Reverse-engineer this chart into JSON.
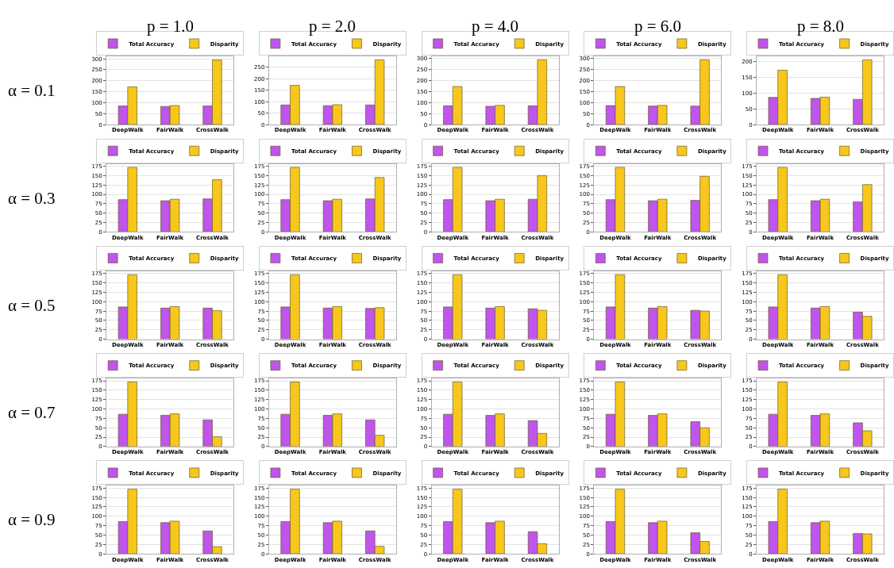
{
  "chart_data": [
    {
      "type": "bar",
      "title": "p = 1.0",
      "ylabel": "α = 0.1",
      "categories": [
        "DeepWalk",
        "FairWalk",
        "CrossWalk"
      ],
      "series": [
        {
          "name": "Total Accuracy",
          "color": "#bf55ec",
          "values": [
            85,
            83,
            85
          ]
        },
        {
          "name": "Disparity",
          "color": "#f7c71b",
          "values": [
            172,
            87,
            295
          ]
        }
      ],
      "ylim": [
        0,
        310
      ],
      "yticks": [
        0,
        50,
        100,
        150,
        200,
        250,
        300
      ],
      "grid": "y",
      "legend": "top"
    },
    {
      "type": "bar",
      "title": "p = 2.0",
      "categories": [
        "DeepWalk",
        "FairWalk",
        "CrossWalk"
      ],
      "series": [
        {
          "name": "Total Accuracy",
          "color": "#bf55ec",
          "values": [
            86,
            83,
            86
          ]
        },
        {
          "name": "Disparity",
          "color": "#f7c71b",
          "values": [
            172,
            87,
            283
          ]
        }
      ],
      "ylim": [
        0,
        297
      ],
      "yticks": [
        0,
        50,
        100,
        150,
        200,
        250
      ],
      "grid": "y",
      "legend": "top"
    },
    {
      "type": "bar",
      "title": "p = 4.0",
      "categories": [
        "DeepWalk",
        "FairWalk",
        "CrossWalk"
      ],
      "series": [
        {
          "name": "Total Accuracy",
          "color": "#bf55ec",
          "values": [
            85,
            83,
            85
          ]
        },
        {
          "name": "Disparity",
          "color": "#f7c71b",
          "values": [
            172,
            87,
            293
          ]
        }
      ],
      "ylim": [
        0,
        307
      ],
      "yticks": [
        0,
        50,
        100,
        150,
        200,
        250,
        300
      ],
      "grid": "y",
      "legend": "top"
    },
    {
      "type": "bar",
      "title": "p = 6.0",
      "categories": [
        "DeepWalk",
        "FairWalk",
        "CrossWalk"
      ],
      "series": [
        {
          "name": "Total Accuracy",
          "color": "#bf55ec",
          "values": [
            86,
            84,
            84
          ]
        },
        {
          "name": "Disparity",
          "color": "#f7c71b",
          "values": [
            172,
            87,
            293
          ]
        }
      ],
      "ylim": [
        0,
        307
      ],
      "yticks": [
        0,
        50,
        100,
        150,
        200,
        250,
        300
      ],
      "grid": "y",
      "legend": "top"
    },
    {
      "type": "bar",
      "title": "p = 8.0",
      "categories": [
        "DeepWalk",
        "FairWalk",
        "CrossWalk"
      ],
      "series": [
        {
          "name": "Total Accuracy",
          "color": "#bf55ec",
          "values": [
            86,
            83,
            80
          ]
        },
        {
          "name": "Disparity",
          "color": "#f7c71b",
          "values": [
            172,
            87,
            205
          ]
        }
      ],
      "ylim": [
        0,
        215
      ],
      "yticks": [
        0,
        50,
        100,
        150,
        200
      ],
      "grid": "y",
      "legend": "top"
    },
    {
      "type": "bar",
      "ylabel": "α = 0.3",
      "categories": [
        "DeepWalk",
        "FairWalk",
        "CrossWalk"
      ],
      "series": [
        {
          "name": "Total Accuracy",
          "color": "#bf55ec",
          "values": [
            86,
            83,
            88
          ]
        },
        {
          "name": "Disparity",
          "color": "#f7c71b",
          "values": [
            172,
            87,
            139
          ]
        }
      ],
      "ylim": [
        0,
        181
      ],
      "yticks": [
        0,
        25,
        50,
        75,
        100,
        125,
        150,
        175
      ],
      "grid": "y",
      "legend": "top"
    },
    {
      "type": "bar",
      "categories": [
        "DeepWalk",
        "FairWalk",
        "CrossWalk"
      ],
      "series": [
        {
          "name": "Total Accuracy",
          "color": "#bf55ec",
          "values": [
            86,
            83,
            88
          ]
        },
        {
          "name": "Disparity",
          "color": "#f7c71b",
          "values": [
            172,
            87,
            145
          ]
        }
      ],
      "ylim": [
        0,
        181
      ],
      "yticks": [
        0,
        25,
        50,
        75,
        100,
        125,
        150,
        175
      ],
      "grid": "y",
      "legend": "top"
    },
    {
      "type": "bar",
      "categories": [
        "DeepWalk",
        "FairWalk",
        "CrossWalk"
      ],
      "series": [
        {
          "name": "Total Accuracy",
          "color": "#bf55ec",
          "values": [
            86,
            83,
            87
          ]
        },
        {
          "name": "Disparity",
          "color": "#f7c71b",
          "values": [
            172,
            87,
            150
          ]
        }
      ],
      "ylim": [
        0,
        181
      ],
      "yticks": [
        0,
        25,
        50,
        75,
        100,
        125,
        150,
        175
      ],
      "grid": "y",
      "legend": "top"
    },
    {
      "type": "bar",
      "categories": [
        "DeepWalk",
        "FairWalk",
        "CrossWalk"
      ],
      "series": [
        {
          "name": "Total Accuracy",
          "color": "#bf55ec",
          "values": [
            86,
            83,
            84
          ]
        },
        {
          "name": "Disparity",
          "color": "#f7c71b",
          "values": [
            172,
            87,
            148
          ]
        }
      ],
      "ylim": [
        0,
        181
      ],
      "yticks": [
        0,
        25,
        50,
        75,
        100,
        125,
        150,
        175
      ],
      "grid": "y",
      "legend": "top"
    },
    {
      "type": "bar",
      "categories": [
        "DeepWalk",
        "FairWalk",
        "CrossWalk"
      ],
      "series": [
        {
          "name": "Total Accuracy",
          "color": "#bf55ec",
          "values": [
            86,
            83,
            80
          ]
        },
        {
          "name": "Disparity",
          "color": "#f7c71b",
          "values": [
            172,
            87,
            126
          ]
        }
      ],
      "ylim": [
        0,
        181
      ],
      "yticks": [
        0,
        25,
        50,
        75,
        100,
        125,
        150,
        175
      ],
      "grid": "y",
      "legend": "top"
    },
    {
      "type": "bar",
      "ylabel": "α = 0.5",
      "categories": [
        "DeepWalk",
        "FairWalk",
        "CrossWalk"
      ],
      "series": [
        {
          "name": "Total Accuracy",
          "color": "#bf55ec",
          "values": [
            86,
            83,
            83
          ]
        },
        {
          "name": "Disparity",
          "color": "#f7c71b",
          "values": [
            172,
            87,
            76
          ]
        }
      ],
      "ylim": [
        0,
        181
      ],
      "yticks": [
        0,
        25,
        50,
        75,
        100,
        125,
        150,
        175
      ],
      "grid": "y",
      "legend": "top"
    },
    {
      "type": "bar",
      "categories": [
        "DeepWalk",
        "FairWalk",
        "CrossWalk"
      ],
      "series": [
        {
          "name": "Total Accuracy",
          "color": "#bf55ec",
          "values": [
            86,
            83,
            82
          ]
        },
        {
          "name": "Disparity",
          "color": "#f7c71b",
          "values": [
            172,
            87,
            84
          ]
        }
      ],
      "ylim": [
        0,
        181
      ],
      "yticks": [
        0,
        25,
        50,
        75,
        100,
        125,
        150,
        175
      ],
      "grid": "y",
      "legend": "top"
    },
    {
      "type": "bar",
      "categories": [
        "DeepWalk",
        "FairWalk",
        "CrossWalk"
      ],
      "series": [
        {
          "name": "Total Accuracy",
          "color": "#bf55ec",
          "values": [
            86,
            83,
            81
          ]
        },
        {
          "name": "Disparity",
          "color": "#f7c71b",
          "values": [
            172,
            87,
            77
          ]
        }
      ],
      "ylim": [
        0,
        181
      ],
      "yticks": [
        0,
        25,
        50,
        75,
        100,
        125,
        150,
        175
      ],
      "grid": "y",
      "legend": "top"
    },
    {
      "type": "bar",
      "categories": [
        "DeepWalk",
        "FairWalk",
        "CrossWalk"
      ],
      "series": [
        {
          "name": "Total Accuracy",
          "color": "#bf55ec",
          "values": [
            86,
            83,
            77
          ]
        },
        {
          "name": "Disparity",
          "color": "#f7c71b",
          "values": [
            172,
            87,
            75
          ]
        }
      ],
      "ylim": [
        0,
        181
      ],
      "yticks": [
        0,
        25,
        50,
        75,
        100,
        125,
        150,
        175
      ],
      "grid": "y",
      "legend": "top"
    },
    {
      "type": "bar",
      "categories": [
        "DeepWalk",
        "FairWalk",
        "CrossWalk"
      ],
      "series": [
        {
          "name": "Total Accuracy",
          "color": "#bf55ec",
          "values": [
            86,
            83,
            72
          ]
        },
        {
          "name": "Disparity",
          "color": "#f7c71b",
          "values": [
            172,
            87,
            61
          ]
        }
      ],
      "ylim": [
        0,
        181
      ],
      "yticks": [
        0,
        25,
        50,
        75,
        100,
        125,
        150,
        175
      ],
      "grid": "y",
      "legend": "top"
    },
    {
      "type": "bar",
      "ylabel": "α = 0.7",
      "categories": [
        "DeepWalk",
        "FairWalk",
        "CrossWalk"
      ],
      "series": [
        {
          "name": "Total Accuracy",
          "color": "#bf55ec",
          "values": [
            86,
            83,
            71
          ]
        },
        {
          "name": "Disparity",
          "color": "#f7c71b",
          "values": [
            172,
            87,
            26
          ]
        }
      ],
      "ylim": [
        0,
        181
      ],
      "yticks": [
        0,
        25,
        50,
        75,
        100,
        125,
        150,
        175
      ],
      "grid": "y",
      "legend": "top"
    },
    {
      "type": "bar",
      "categories": [
        "DeepWalk",
        "FairWalk",
        "CrossWalk"
      ],
      "series": [
        {
          "name": "Total Accuracy",
          "color": "#bf55ec",
          "values": [
            86,
            83,
            71
          ]
        },
        {
          "name": "Disparity",
          "color": "#f7c71b",
          "values": [
            172,
            87,
            30
          ]
        }
      ],
      "ylim": [
        0,
        181
      ],
      "yticks": [
        0,
        25,
        50,
        75,
        100,
        125,
        150,
        175
      ],
      "grid": "y",
      "legend": "top"
    },
    {
      "type": "bar",
      "categories": [
        "DeepWalk",
        "FairWalk",
        "CrossWalk"
      ],
      "series": [
        {
          "name": "Total Accuracy",
          "color": "#bf55ec",
          "values": [
            86,
            83,
            69
          ]
        },
        {
          "name": "Disparity",
          "color": "#f7c71b",
          "values": [
            172,
            87,
            35
          ]
        }
      ],
      "ylim": [
        0,
        181
      ],
      "yticks": [
        0,
        25,
        50,
        75,
        100,
        125,
        150,
        175
      ],
      "grid": "y",
      "legend": "top"
    },
    {
      "type": "bar",
      "categories": [
        "DeepWalk",
        "FairWalk",
        "CrossWalk"
      ],
      "series": [
        {
          "name": "Total Accuracy",
          "color": "#bf55ec",
          "values": [
            86,
            83,
            66
          ]
        },
        {
          "name": "Disparity",
          "color": "#f7c71b",
          "values": [
            172,
            87,
            50
          ]
        }
      ],
      "ylim": [
        0,
        181
      ],
      "yticks": [
        0,
        25,
        50,
        75,
        100,
        125,
        150,
        175
      ],
      "grid": "y",
      "legend": "top"
    },
    {
      "type": "bar",
      "categories": [
        "DeepWalk",
        "FairWalk",
        "CrossWalk"
      ],
      "series": [
        {
          "name": "Total Accuracy",
          "color": "#bf55ec",
          "values": [
            86,
            83,
            63
          ]
        },
        {
          "name": "Disparity",
          "color": "#f7c71b",
          "values": [
            172,
            87,
            42
          ]
        }
      ],
      "ylim": [
        0,
        181
      ],
      "yticks": [
        0,
        25,
        50,
        75,
        100,
        125,
        150,
        175
      ],
      "grid": "y",
      "legend": "top"
    },
    {
      "type": "bar",
      "ylabel": "α = 0.9",
      "categories": [
        "DeepWalk",
        "FairWalk",
        "CrossWalk"
      ],
      "series": [
        {
          "name": "Total Accuracy",
          "color": "#bf55ec",
          "values": [
            86,
            83,
            61
          ]
        },
        {
          "name": "Disparity",
          "color": "#f7c71b",
          "values": [
            172,
            87,
            19
          ]
        }
      ],
      "ylim": [
        0,
        181
      ],
      "yticks": [
        0,
        25,
        50,
        75,
        100,
        125,
        150,
        175
      ],
      "grid": "y",
      "legend": "top"
    },
    {
      "type": "bar",
      "categories": [
        "DeepWalk",
        "FairWalk",
        "CrossWalk"
      ],
      "series": [
        {
          "name": "Total Accuracy",
          "color": "#bf55ec",
          "values": [
            86,
            83,
            61
          ]
        },
        {
          "name": "Disparity",
          "color": "#f7c71b",
          "values": [
            172,
            87,
            20
          ]
        }
      ],
      "ylim": [
        0,
        181
      ],
      "yticks": [
        0,
        25,
        50,
        75,
        100,
        125,
        150,
        175
      ],
      "grid": "y",
      "legend": "top"
    },
    {
      "type": "bar",
      "categories": [
        "DeepWalk",
        "FairWalk",
        "CrossWalk"
      ],
      "series": [
        {
          "name": "Total Accuracy",
          "color": "#bf55ec",
          "values": [
            86,
            83,
            59
          ]
        },
        {
          "name": "Disparity",
          "color": "#f7c71b",
          "values": [
            172,
            87,
            27
          ]
        }
      ],
      "ylim": [
        0,
        181
      ],
      "yticks": [
        0,
        25,
        50,
        75,
        100,
        125,
        150,
        175
      ],
      "grid": "y",
      "legend": "top"
    },
    {
      "type": "bar",
      "categories": [
        "DeepWalk",
        "FairWalk",
        "CrossWalk"
      ],
      "series": [
        {
          "name": "Total Accuracy",
          "color": "#bf55ec",
          "values": [
            86,
            83,
            56
          ]
        },
        {
          "name": "Disparity",
          "color": "#f7c71b",
          "values": [
            172,
            87,
            33
          ]
        }
      ],
      "ylim": [
        0,
        181
      ],
      "yticks": [
        0,
        25,
        50,
        75,
        100,
        125,
        150,
        175
      ],
      "grid": "y",
      "legend": "top"
    },
    {
      "type": "bar",
      "categories": [
        "DeepWalk",
        "FairWalk",
        "CrossWalk"
      ],
      "series": [
        {
          "name": "Total Accuracy",
          "color": "#bf55ec",
          "values": [
            86,
            83,
            54
          ]
        },
        {
          "name": "Disparity",
          "color": "#f7c71b",
          "values": [
            172,
            87,
            53
          ]
        }
      ],
      "ylim": [
        0,
        181
      ],
      "yticks": [
        0,
        25,
        50,
        75,
        100,
        125,
        150,
        175
      ],
      "grid": "y",
      "legend": "top"
    }
  ]
}
